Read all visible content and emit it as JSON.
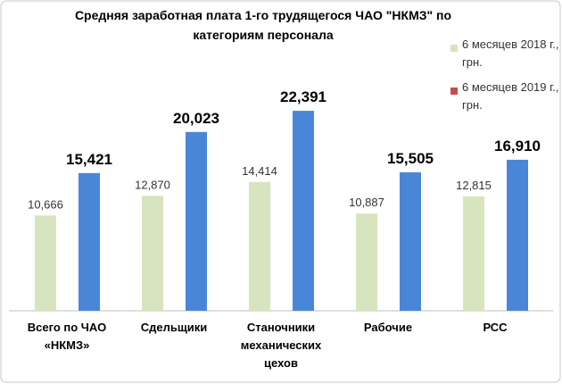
{
  "chart_data": {
    "type": "bar",
    "title": "Средняя заработная плата 1-го трудящегося ЧАО \"НКМЗ\" по категориям персонала",
    "categories": [
      "Всего  по ЧАО «НКМЗ»",
      "Сдельщики",
      "Станочники механических цехов",
      "Рабочие",
      "РСС"
    ],
    "series": [
      {
        "name": "6 месяцев 2018 г., грн.",
        "color": "#d7e4bd",
        "legend_color": "#d7e4bd",
        "values": [
          10666,
          12870,
          14414,
          10887,
          12815
        ],
        "value_labels": [
          "10,666",
          "12,870",
          "14,414",
          "10,887",
          "12,815"
        ]
      },
      {
        "name": "6 месяцев 2019 г., грн.",
        "color": "#4a86d8",
        "legend_color": "#c0504d",
        "values": [
          15421,
          20023,
          22391,
          15505,
          16910
        ],
        "value_labels": [
          "15,421",
          "20,023",
          "22,391",
          "15,505",
          "16,910"
        ]
      }
    ],
    "ylim": [
      0,
      30000
    ]
  }
}
